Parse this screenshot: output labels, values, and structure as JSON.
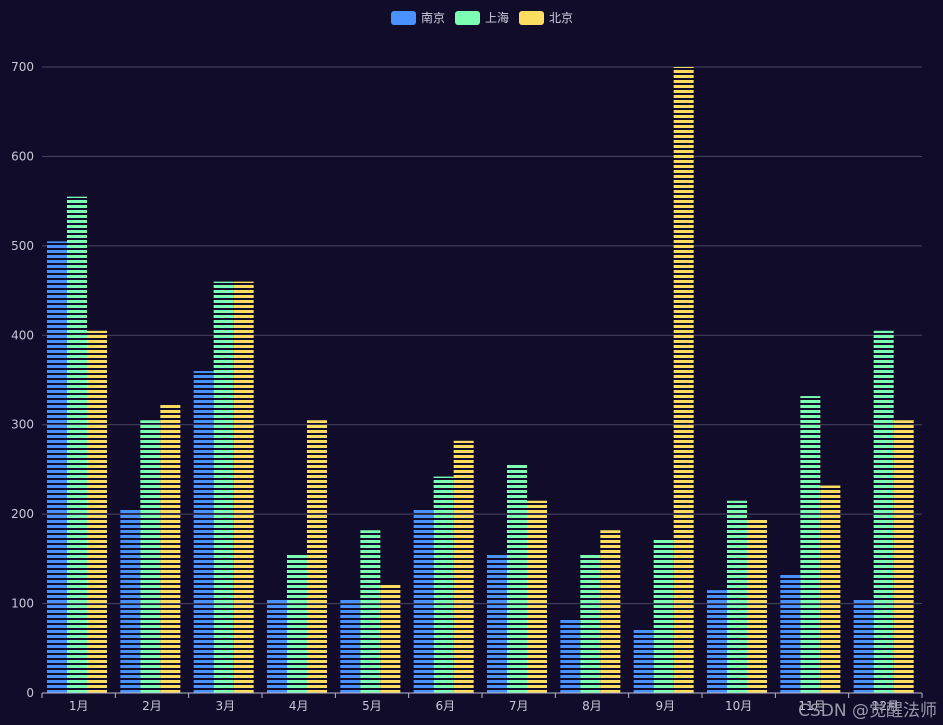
{
  "chart_data": {
    "type": "bar",
    "categories": [
      "1月",
      "2月",
      "3月",
      "4月",
      "5月",
      "6月",
      "7月",
      "8月",
      "9月",
      "10月",
      "11月",
      "12月"
    ],
    "series": [
      {
        "name": "南京",
        "color": "#4992ff",
        "values": [
          505,
          205,
          360,
          105,
          105,
          205,
          155,
          82,
          72,
          115,
          132,
          105
        ]
      },
      {
        "name": "上海",
        "color": "#7cffb2",
        "values": [
          555,
          305,
          460,
          155,
          182,
          242,
          255,
          155,
          172,
          215,
          332,
          405
        ]
      },
      {
        "name": "北京",
        "color": "#fddd60",
        "values": [
          405,
          322,
          460,
          305,
          122,
          282,
          215,
          182,
          700,
          195,
          232,
          305
        ]
      }
    ],
    "ylim": [
      0,
      700
    ],
    "yticks": [
      "0",
      "100",
      "200",
      "300",
      "400",
      "500",
      "600",
      "700"
    ],
    "legend_position": "top-center",
    "grid": true,
    "bar_pattern": "horizontal-stripes"
  },
  "watermark": "CSDN @觉醒法师"
}
